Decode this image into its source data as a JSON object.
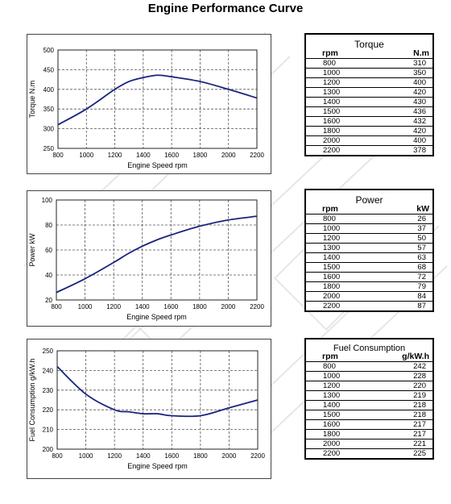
{
  "title": "Engine Performance Curve",
  "colors": {
    "line": "#1a237e",
    "grid": "#555555",
    "watermark": "#e6e6e6"
  },
  "chart_data": [
    {
      "type": "line",
      "xlabel": "Engine Speed rpm",
      "ylabel": "Torque N.m",
      "xlim": [
        800,
        2200
      ],
      "ylim": [
        250,
        500
      ],
      "xticks": [
        800,
        1000,
        1200,
        1400,
        1600,
        1800,
        2000,
        2200
      ],
      "yticks": [
        250,
        300,
        350,
        400,
        450,
        500
      ],
      "grid": true,
      "x": [
        800,
        1000,
        1200,
        1300,
        1400,
        1500,
        1600,
        1800,
        2000,
        2200
      ],
      "values": [
        310,
        350,
        400,
        420,
        430,
        436,
        432,
        420,
        400,
        378
      ]
    },
    {
      "type": "line",
      "xlabel": "Engine Speed rpm",
      "ylabel": "Power kW",
      "xlim": [
        800,
        2200
      ],
      "ylim": [
        20,
        100
      ],
      "xticks": [
        800,
        1000,
        1200,
        1400,
        1600,
        1800,
        2000,
        2200
      ],
      "yticks": [
        20,
        40,
        60,
        80,
        100
      ],
      "grid": true,
      "x": [
        800,
        1000,
        1200,
        1300,
        1400,
        1500,
        1600,
        1800,
        2000,
        2200
      ],
      "values": [
        26,
        37,
        50,
        57,
        63,
        68,
        72,
        79,
        84,
        87
      ]
    },
    {
      "type": "line",
      "xlabel": "Engine Speed rpm",
      "ylabel": "Fuel Consumption g/kW.h",
      "xlim": [
        800,
        2200
      ],
      "ylim": [
        200,
        250
      ],
      "xticks": [
        800,
        1000,
        1200,
        1400,
        1600,
        1800,
        2000,
        2200
      ],
      "yticks": [
        200,
        210,
        220,
        230,
        240,
        250
      ],
      "grid": true,
      "x": [
        800,
        1000,
        1200,
        1300,
        1400,
        1500,
        1600,
        1800,
        2000,
        2200
      ],
      "values": [
        242,
        228,
        220,
        219,
        218,
        218,
        217,
        217,
        221,
        225
      ]
    }
  ],
  "tables": [
    {
      "title": "Torque",
      "col1": "rpm",
      "col2": "N.m",
      "rows": [
        [
          "800",
          "310"
        ],
        [
          "1000",
          "350"
        ],
        [
          "1200",
          "400"
        ],
        [
          "1300",
          "420"
        ],
        [
          "1400",
          "430"
        ],
        [
          "1500",
          "436"
        ],
        [
          "1600",
          "432"
        ],
        [
          "1800",
          "420"
        ],
        [
          "2000",
          "400"
        ],
        [
          "2200",
          "378"
        ]
      ]
    },
    {
      "title": "Power",
      "col1": "rpm",
      "col2": "kW",
      "rows": [
        [
          "800",
          "26"
        ],
        [
          "1000",
          "37"
        ],
        [
          "1200",
          "50"
        ],
        [
          "1300",
          "57"
        ],
        [
          "1400",
          "63"
        ],
        [
          "1500",
          "68"
        ],
        [
          "1600",
          "72"
        ],
        [
          "1800",
          "79"
        ],
        [
          "2000",
          "84"
        ],
        [
          "2200",
          "87"
        ]
      ]
    },
    {
      "title": "Fuel Consumption",
      "col1": "rpm",
      "col2": "g/kW.h",
      "rows": [
        [
          "800",
          "242"
        ],
        [
          "1000",
          "228"
        ],
        [
          "1200",
          "220"
        ],
        [
          "1300",
          "219"
        ],
        [
          "1400",
          "218"
        ],
        [
          "1500",
          "218"
        ],
        [
          "1600",
          "217"
        ],
        [
          "1800",
          "217"
        ],
        [
          "2000",
          "221"
        ],
        [
          "2200",
          "225"
        ]
      ]
    }
  ]
}
